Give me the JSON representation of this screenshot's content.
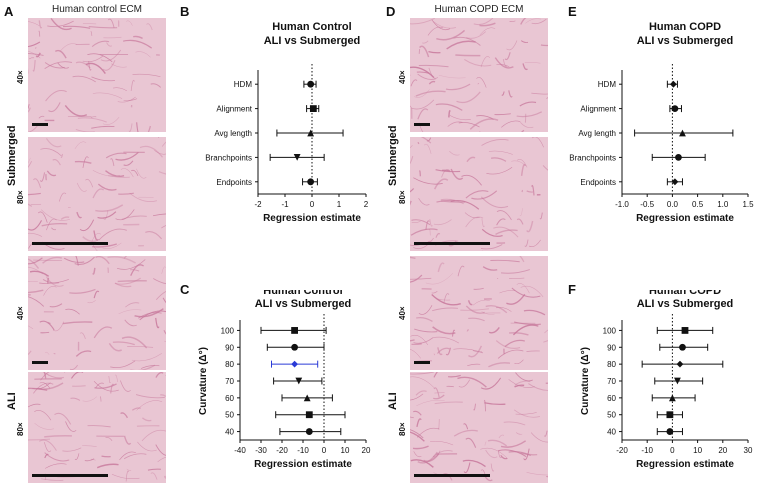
{
  "image_titles": {
    "control": "Human control ECM",
    "copd": "Human COPD ECM"
  },
  "panel_letters": {
    "A": "A",
    "B": "B",
    "C": "C",
    "D": "D",
    "E": "E",
    "F": "F"
  },
  "condition_labels": {
    "submerged": "Submerged",
    "ali": "ALI"
  },
  "magnification_labels": {
    "m40": "40×",
    "m80": "80×"
  },
  "colors": {
    "tissue": "#e9c6d3",
    "fiber": "#c7779b",
    "plot_marker": "#111111",
    "highlight_series": "#2b3bd6"
  },
  "chart_data": [
    {
      "id": "B",
      "type": "forest",
      "title": "Human Control\nALI vs Submerged",
      "xlabel": "Regression estimate",
      "ylabel": "",
      "xlim": [
        -2,
        2
      ],
      "xticks": [
        -2,
        -1,
        0,
        1,
        2
      ],
      "reference_line": 0,
      "categories": [
        "HDM",
        "Alignment",
        "Avg length",
        "Branchpoints",
        "Endpoints"
      ],
      "estimate": [
        -0.05,
        0.05,
        -0.05,
        -0.55,
        -0.05
      ],
      "ci_low": [
        -0.3,
        -0.2,
        -1.3,
        -1.55,
        -0.35
      ],
      "ci_high": [
        0.15,
        0.25,
        1.15,
        0.45,
        0.2
      ],
      "markers": [
        "circle",
        "square",
        "triangle-up",
        "triangle-down",
        "circle"
      ]
    },
    {
      "id": "C",
      "type": "forest",
      "title": "Human Control\nALI vs Submerged",
      "xlabel": "Regression estimate",
      "ylabel": "Curvature (Δ°)",
      "xlim": [
        -40,
        20
      ],
      "xticks": [
        -40,
        -30,
        -20,
        -10,
        0,
        10,
        20
      ],
      "reference_line": 0,
      "categories": [
        "100",
        "90",
        "80",
        "70",
        "60",
        "50",
        "40"
      ],
      "estimate": [
        -14,
        -14,
        -14,
        -12,
        -8,
        -7,
        -7
      ],
      "ci_low": [
        -30,
        -27,
        -25,
        -24,
        -20,
        -23,
        -21
      ],
      "ci_high": [
        1,
        0,
        -3,
        -1,
        4,
        10,
        8
      ],
      "highlight_index": 2,
      "markers": [
        "square",
        "circle",
        "diamond",
        "triangle-down",
        "triangle-up",
        "square",
        "circle"
      ]
    },
    {
      "id": "E",
      "type": "forest",
      "title": "Human COPD\nALI vs Submerged",
      "xlabel": "Regression estimate",
      "ylabel": "",
      "xlim": [
        -1.0,
        1.5
      ],
      "xticks": [
        -1.0,
        -0.5,
        0.0,
        0.5,
        1.0,
        1.5
      ],
      "reference_line": 0,
      "categories": [
        "HDM",
        "Alignment",
        "Avg length",
        "Branchpoints",
        "Endpoints"
      ],
      "estimate": [
        0.02,
        0.05,
        0.2,
        0.12,
        0.05
      ],
      "ci_low": [
        -0.1,
        -0.05,
        -0.75,
        -0.4,
        -0.1
      ],
      "ci_high": [
        0.1,
        0.18,
        1.2,
        0.65,
        0.2
      ],
      "markers": [
        "diamond",
        "circle",
        "triangle-up",
        "circle",
        "diamond"
      ]
    },
    {
      "id": "F",
      "type": "forest",
      "title": "Human COPD\nALI vs Submerged",
      "xlabel": "Regression estimate",
      "ylabel": "Curvature (Δ°)",
      "xlim": [
        -20,
        30
      ],
      "xticks": [
        -20,
        -10,
        0,
        10,
        20,
        30
      ],
      "reference_line": 0,
      "categories": [
        "100",
        "90",
        "80",
        "70",
        "60",
        "50",
        "40"
      ],
      "estimate": [
        5,
        4,
        3,
        2,
        0,
        -1,
        -1
      ],
      "ci_low": [
        -6,
        -5,
        -12,
        -7,
        -8,
        -6,
        -6
      ],
      "ci_high": [
        16,
        14,
        20,
        12,
        9,
        4,
        4
      ],
      "markers": [
        "square",
        "circle",
        "diamond",
        "triangle-down",
        "triangle-up",
        "square",
        "circle"
      ]
    }
  ]
}
